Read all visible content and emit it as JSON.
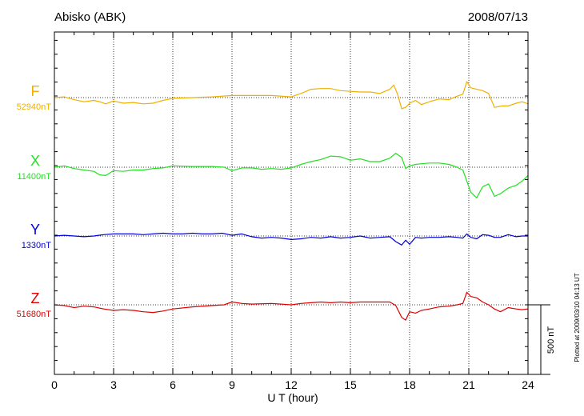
{
  "header": {
    "station": "Abisko (ABK)",
    "date": "2008/07/13"
  },
  "side_note": "Plotted at 2009/03/10 04:13 UT",
  "scale_label": "500 nT",
  "colors": {
    "F": "#f0b000",
    "X": "#22e022",
    "Y": "#0000dd",
    "Z": "#e00000",
    "axis": "#000000"
  },
  "chart_data": {
    "type": "line",
    "title": "Abisko (ABK)",
    "date": "2008/07/13",
    "xlabel": "U T (hour)",
    "xlim": [
      0,
      24
    ],
    "xticks": [
      "0",
      "3",
      "6",
      "9",
      "12",
      "15",
      "18",
      "21",
      "24"
    ],
    "ylabel": "",
    "scale_bar_nT": 500,
    "grid": "dotted, at 3-hour intervals and at each baseline",
    "series": [
      {
        "name": "F",
        "baseline_label": "52940nT",
        "baseline_nT": 52940,
        "color": "#f0b000",
        "x": [
          0,
          0.5,
          1,
          1.5,
          2,
          2.3,
          2.6,
          3,
          3.5,
          4,
          4.5,
          5,
          5.5,
          6,
          7,
          8,
          9,
          10,
          11,
          12,
          12.5,
          13,
          13.5,
          14,
          14.5,
          15,
          15.5,
          16,
          16.5,
          17,
          17.2,
          17.4,
          17.6,
          17.8,
          18,
          18.3,
          18.6,
          19,
          19.5,
          20,
          20.4,
          20.7,
          20.9,
          21.1,
          21.4,
          21.7,
          22,
          22.3,
          22.7,
          23,
          23.4,
          23.7,
          24
        ],
        "y": [
          52940,
          52945,
          52925,
          52910,
          52920,
          52910,
          52895,
          52915,
          52900,
          52905,
          52895,
          52900,
          52920,
          52935,
          52940,
          52945,
          52955,
          52955,
          52955,
          52945,
          52970,
          53000,
          53005,
          53005,
          52990,
          52985,
          52980,
          52980,
          52970,
          53000,
          53030,
          52960,
          52860,
          52870,
          52900,
          52920,
          52890,
          52910,
          52930,
          52925,
          52950,
          52965,
          53055,
          53010,
          53000,
          52990,
          52970,
          52870,
          52880,
          52880,
          52900,
          52910,
          52895
        ]
      },
      {
        "name": "X",
        "baseline_label": "11400nT",
        "baseline_nT": 11400,
        "color": "#22e022",
        "x": [
          0,
          0.5,
          1,
          1.5,
          2,
          2.3,
          2.6,
          3,
          3.5,
          4,
          4.5,
          5,
          5.5,
          6,
          7,
          8,
          8.6,
          9,
          9.5,
          10,
          10.5,
          11,
          11.5,
          12,
          12.5,
          13,
          13.5,
          14,
          14.5,
          15,
          15.5,
          16,
          16.5,
          17,
          17.3,
          17.6,
          17.8,
          18,
          18.3,
          18.6,
          19,
          19.5,
          20,
          20.4,
          20.7,
          20.9,
          21.1,
          21.4,
          21.7,
          22,
          22.3,
          22.6,
          23,
          23.4,
          23.7,
          24
        ],
        "y": [
          11400,
          11410,
          11390,
          11380,
          11370,
          11345,
          11340,
          11375,
          11370,
          11380,
          11380,
          11390,
          11395,
          11410,
          11405,
          11405,
          11400,
          11375,
          11395,
          11395,
          11385,
          11390,
          11385,
          11395,
          11420,
          11440,
          11455,
          11480,
          11475,
          11450,
          11460,
          11440,
          11440,
          11465,
          11500,
          11470,
          11390,
          11410,
          11420,
          11425,
          11430,
          11430,
          11420,
          11400,
          11380,
          11300,
          11220,
          11180,
          11260,
          11280,
          11190,
          11210,
          11250,
          11270,
          11300,
          11340
        ]
      },
      {
        "name": "Y",
        "baseline_label": "1330nT",
        "baseline_nT": 1330,
        "color": "#0000dd",
        "x": [
          0,
          0.5,
          1,
          1.5,
          2,
          2.5,
          3,
          3.5,
          4,
          4.5,
          5,
          5.5,
          6,
          6.5,
          7,
          7.5,
          8,
          8.5,
          9,
          9.5,
          10,
          10.5,
          11,
          11.5,
          12,
          12.5,
          13,
          13.5,
          14,
          14.5,
          15,
          15.5,
          16,
          16.5,
          17,
          17.3,
          17.6,
          17.8,
          18,
          18.3,
          18.6,
          19,
          19.5,
          20,
          20.4,
          20.7,
          20.9,
          21.1,
          21.4,
          21.7,
          22,
          22.3,
          22.6,
          23,
          23.4,
          23.7,
          24
        ],
        "y": [
          1330,
          1335,
          1330,
          1325,
          1330,
          1340,
          1345,
          1345,
          1345,
          1340,
          1345,
          1350,
          1345,
          1345,
          1350,
          1345,
          1345,
          1350,
          1335,
          1345,
          1325,
          1315,
          1320,
          1315,
          1305,
          1310,
          1320,
          1315,
          1325,
          1315,
          1320,
          1330,
          1315,
          1320,
          1325,
          1290,
          1265,
          1300,
          1270,
          1320,
          1315,
          1320,
          1320,
          1325,
          1320,
          1315,
          1345,
          1320,
          1310,
          1340,
          1335,
          1320,
          1320,
          1340,
          1325,
          1330,
          1330
        ]
      },
      {
        "name": "Z",
        "baseline_label": "51680nT",
        "baseline_nT": 51680,
        "color": "#e00000",
        "x": [
          0,
          0.5,
          1,
          1.5,
          2,
          2.5,
          3,
          3.5,
          4,
          4.5,
          5,
          5.5,
          6,
          7,
          8,
          8.6,
          9,
          9.5,
          10,
          11,
          12,
          12.5,
          13,
          13.5,
          14,
          14.5,
          15,
          15.5,
          16,
          16.5,
          17,
          17.3,
          17.6,
          17.8,
          18,
          18.3,
          18.6,
          19,
          19.5,
          20,
          20.4,
          20.7,
          20.9,
          21.1,
          21.4,
          21.7,
          22,
          22.3,
          22.6,
          23,
          23.4,
          23.7,
          24
        ],
        "y": [
          51680,
          51675,
          51660,
          51670,
          51665,
          51650,
          51640,
          51645,
          51640,
          51630,
          51625,
          51635,
          51650,
          51665,
          51675,
          51680,
          51700,
          51690,
          51685,
          51690,
          51680,
          51690,
          51695,
          51700,
          51695,
          51700,
          51695,
          51700,
          51700,
          51700,
          51700,
          51675,
          51590,
          51570,
          51630,
          51620,
          51640,
          51650,
          51665,
          51670,
          51680,
          51690,
          51770,
          51740,
          51730,
          51700,
          51680,
          51650,
          51630,
          51660,
          51650,
          51645,
          51650
        ]
      }
    ]
  }
}
